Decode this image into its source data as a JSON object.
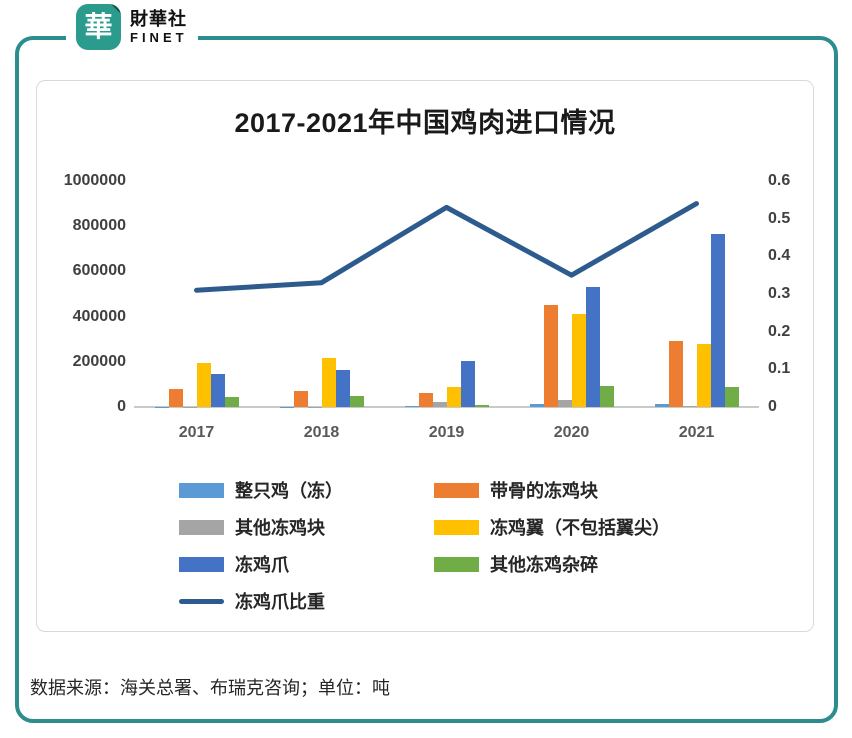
{
  "brand": {
    "logo_char": "華",
    "name_cn": "財華社",
    "name_en": "FINET"
  },
  "colors": {
    "frame": "#2B8D8D",
    "logo_bg": "#2A9B8C",
    "card_border": "#D9D9D9",
    "axis_line": "#C9C9C9",
    "title_text": "#1A1A1A",
    "axis_text": "#404040",
    "xlabel_text": "#595959"
  },
  "chart_data": {
    "type": "bar",
    "title": "2017-2021年中国鸡肉进口情况",
    "categories": [
      "2017",
      "2018",
      "2019",
      "2020",
      "2021"
    ],
    "series": [
      {
        "name": "整只鸡（冻）",
        "type": "bar",
        "color": "#5B9BD5",
        "values": [
          2000,
          2000,
          5000,
          15000,
          15000
        ]
      },
      {
        "name": "带骨的冻鸡块",
        "type": "bar",
        "color": "#ED7D31",
        "values": [
          80000,
          70000,
          62000,
          450000,
          292000
        ]
      },
      {
        "name": "其他冻鸡块",
        "type": "bar",
        "color": "#A5A5A5",
        "values": [
          2000,
          2000,
          20000,
          30000,
          4000
        ]
      },
      {
        "name": "冻鸡翼（不包括翼尖）",
        "type": "bar",
        "color": "#FFC000",
        "values": [
          195000,
          215000,
          90000,
          410000,
          278000
        ]
      },
      {
        "name": "冻鸡爪",
        "type": "bar",
        "color": "#4472C4",
        "values": [
          145000,
          165000,
          205000,
          530000,
          765000
        ]
      },
      {
        "name": "其他冻鸡杂碎",
        "type": "bar",
        "color": "#70AD47",
        "values": [
          45000,
          48000,
          8000,
          95000,
          88000
        ]
      },
      {
        "name": "冻鸡爪比重",
        "type": "line",
        "color": "#2E5B8E",
        "axis": "right",
        "values": [
          0.31,
          0.33,
          0.53,
          0.35,
          0.54
        ]
      }
    ],
    "left_axis": {
      "min": 0,
      "max": 1000000,
      "step": 200000,
      "ticks": [
        "1000000",
        "800000",
        "600000",
        "400000",
        "200000",
        "0"
      ]
    },
    "right_axis": {
      "min": 0,
      "max": 0.6,
      "step": 0.1,
      "ticks": [
        "0.6",
        "0.5",
        "0.4",
        "0.3",
        "0.2",
        "0.1",
        "0"
      ]
    },
    "grid": false,
    "legend_position": "bottom"
  },
  "footer": {
    "source_note": "数据来源：海关总署、布瑞克咨询；单位：吨"
  }
}
